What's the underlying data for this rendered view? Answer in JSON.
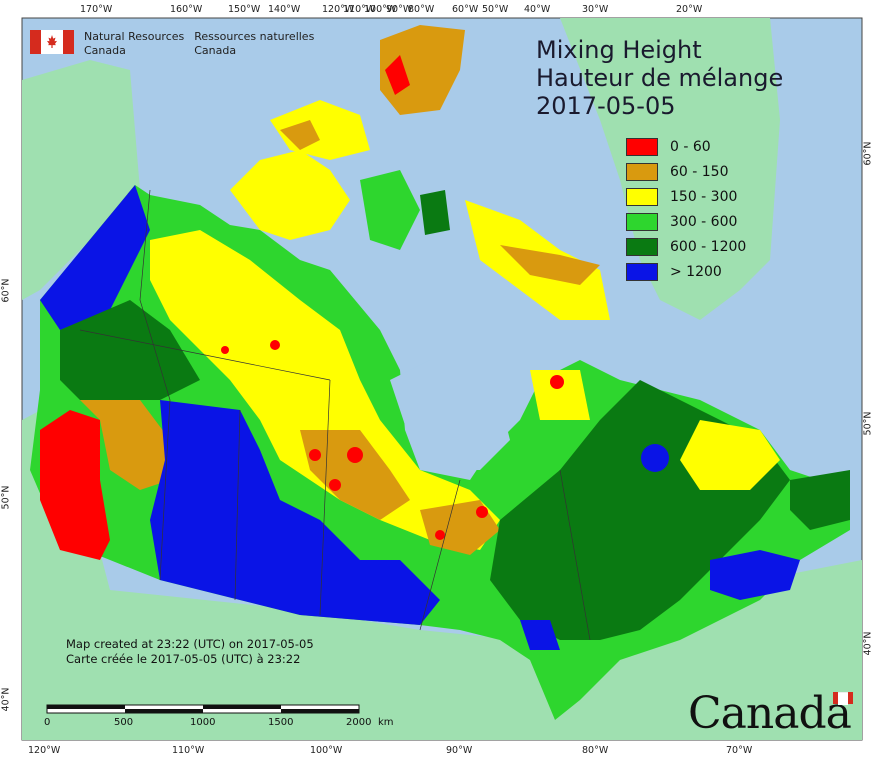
{
  "organization": {
    "name_en_line1": "Natural Resources",
    "name_en_line2": "Canada",
    "name_fr_line1": "Ressources naturelles",
    "name_fr_line2": "Canada"
  },
  "title": {
    "line1": "Mixing Height",
    "line2": "Hauteur de mélange",
    "date": "2017-05-05"
  },
  "legend": [
    {
      "label": "0 - 60",
      "color": "#ff0000"
    },
    {
      "label": "60 - 150",
      "color": "#d99a0f"
    },
    {
      "label": "150 - 300",
      "color": "#ffff00"
    },
    {
      "label": "300 - 600",
      "color": "#2ed62e"
    },
    {
      "label": "600 - 1200",
      "color": "#0a7a12"
    },
    {
      "label": "> 1200",
      "color": "#0a14e6"
    }
  ],
  "colors": {
    "ocean": "#a9cbe9",
    "land_outside": "#9fe0b0"
  },
  "credit": {
    "line1": "Map created at 23:22 (UTC) on 2017-05-05",
    "line2": "Carte créée le 2017-05-05 (UTC) à 23:22"
  },
  "scale_bar": {
    "labels": [
      "0",
      "500",
      "1000",
      "1500",
      "2000"
    ],
    "unit": "km"
  },
  "wordmark": "Canada",
  "ticks": {
    "top": [
      "170°W",
      "160°W",
      "150°W",
      "140°W",
      "120°W",
      "110°W",
      "100°W",
      "80°W",
      "90°W",
      "60°W",
      "50°W",
      "40°W",
      "30°W",
      "20°W"
    ],
    "bottom": [
      "120°W",
      "110°W",
      "100°W",
      "90°W",
      "80°W",
      "70°W"
    ],
    "left": [
      "60°N",
      "50°N",
      "40°N"
    ],
    "right": [
      "60°N",
      "50°N",
      "40°N"
    ]
  }
}
